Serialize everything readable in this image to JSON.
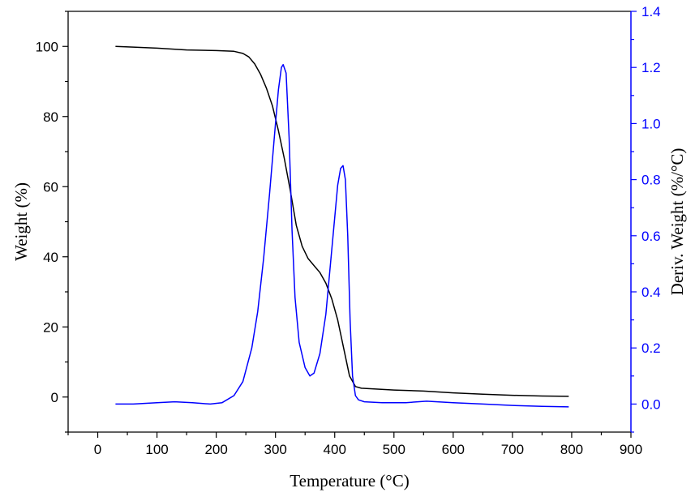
{
  "chart_data": {
    "type": "line",
    "title": "",
    "xlabel": "Temperature (°C)",
    "ylabel": "Weight (%)",
    "y2label": "Deriv. Weight (%/°C)",
    "xlim": [
      -50,
      900
    ],
    "ylim": [
      -10,
      110
    ],
    "y2lim": [
      -0.1,
      1.4
    ],
    "xticks": [
      0,
      100,
      200,
      300,
      400,
      500,
      600,
      700,
      800,
      900
    ],
    "yticks": [
      0,
      20,
      40,
      60,
      80,
      100
    ],
    "y2ticks": [
      0.0,
      0.2,
      0.4,
      0.6,
      0.8,
      1.0,
      1.2,
      1.4
    ],
    "y2tick_labels": [
      "0.0",
      "0.2",
      "0.4",
      "0.6",
      "0.8",
      "1.0",
      "1.2",
      "1.4"
    ],
    "colors": {
      "weight": "#000000",
      "deriv": "#0000ff",
      "axis": "#000000",
      "right_axis": "#0000ff"
    },
    "series": [
      {
        "name": "Weight",
        "axis": "left",
        "color": "#000000",
        "x": [
          30,
          60,
          100,
          150,
          200,
          230,
          245,
          255,
          265,
          275,
          285,
          295,
          305,
          315,
          325,
          335,
          345,
          355,
          365,
          375,
          385,
          395,
          405,
          415,
          425,
          435,
          445,
          500,
          550,
          600,
          650,
          700,
          750,
          795
        ],
        "y": [
          100,
          99.8,
          99.5,
          99,
          98.8,
          98.6,
          98,
          97,
          95,
          92,
          88,
          83,
          76,
          68,
          59,
          49,
          43,
          39.5,
          37.5,
          35.5,
          32.5,
          28,
          22,
          14,
          6,
          3,
          2.5,
          2,
          1.7,
          1.2,
          0.8,
          0.5,
          0.3,
          0.2
        ]
      },
      {
        "name": "Deriv. Weight",
        "axis": "right",
        "color": "#0000ff",
        "x": [
          30,
          60,
          100,
          130,
          160,
          190,
          210,
          230,
          245,
          260,
          270,
          280,
          290,
          300,
          305,
          310,
          313,
          318,
          323,
          328,
          333,
          340,
          350,
          358,
          365,
          375,
          385,
          395,
          405,
          410,
          414,
          418,
          422,
          426,
          430,
          435,
          440,
          450,
          480,
          520,
          555,
          600,
          650,
          700,
          750,
          795
        ],
        "y": [
          0.0,
          0.0,
          0.005,
          0.008,
          0.005,
          0.0,
          0.005,
          0.03,
          0.08,
          0.2,
          0.33,
          0.52,
          0.75,
          1.0,
          1.12,
          1.2,
          1.21,
          1.18,
          0.95,
          0.62,
          0.38,
          0.22,
          0.13,
          0.1,
          0.11,
          0.18,
          0.32,
          0.55,
          0.78,
          0.84,
          0.85,
          0.8,
          0.6,
          0.3,
          0.1,
          0.03,
          0.015,
          0.008,
          0.005,
          0.005,
          0.01,
          0.005,
          0.0,
          -0.005,
          -0.008,
          -0.01
        ]
      }
    ]
  }
}
